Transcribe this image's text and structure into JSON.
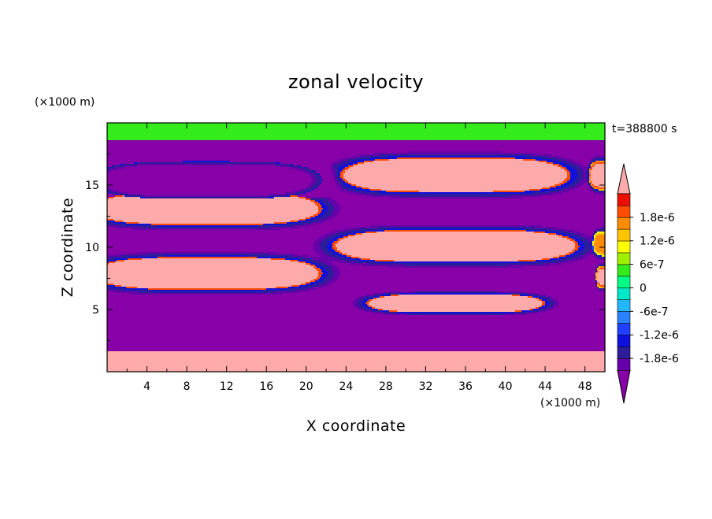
{
  "chart_data": {
    "type": "heatmap",
    "title": "zonal velocity",
    "xlabel": "X coordinate",
    "ylabel": "Z coordinate",
    "x_unit": "(×1000 m)",
    "z_unit": "(×1000 m)",
    "time_label": "t=388800 s",
    "xlim": [
      0,
      50
    ],
    "zlim": [
      0,
      20
    ],
    "x_ticks": [
      "4",
      "8",
      "12",
      "16",
      "20",
      "24",
      "28",
      "32",
      "36",
      "40",
      "44",
      "48"
    ],
    "x_tick_values": [
      4,
      8,
      12,
      16,
      20,
      24,
      28,
      32,
      36,
      40,
      44,
      48
    ],
    "z_ticks": [
      "5",
      "10",
      "15"
    ],
    "z_tick_values": [
      5,
      10,
      15
    ],
    "colorbar": {
      "labels": [
        "1.8e-6",
        "1.2e-6",
        "6e-7",
        "0",
        "-6e-7",
        "-1.2e-6",
        "-1.8e-6"
      ],
      "label_values": [
        1.8e-06,
        1.2e-06,
        6e-07,
        0,
        -6e-07,
        -1.2e-06,
        -1.8e-06
      ],
      "levels": [
        -2.1e-06,
        -1.8e-06,
        -1.5e-06,
        -1.2e-06,
        -9e-07,
        -6e-07,
        -3e-07,
        0,
        3e-07,
        6e-07,
        9e-07,
        1.2e-06,
        1.5e-06,
        1.8e-06,
        2.1e-06
      ],
      "colors": [
        "#6600aa",
        "#2d1d9b",
        "#1010dd",
        "#2040ff",
        "#2a82ff",
        "#22b7ff",
        "#00e8c8",
        "#00ff84",
        "#34ec1c",
        "#a0ee00",
        "#ffff00",
        "#ffc400",
        "#ff8c00",
        "#ff4c00",
        "#ec0e00"
      ],
      "over_color": "#ffaaaa",
      "under_color": "#8800a8"
    },
    "field": {
      "background_value": -2.4e-06,
      "top_value": 3e-07,
      "bands": [
        {
          "x": [
            0,
            50
          ],
          "z": [
            0,
            1.6
          ],
          "value": 2.4e-06
        },
        {
          "x": [
            0,
            50
          ],
          "z": [
            18.6,
            20
          ],
          "value": 4e-07
        }
      ],
      "cells": [
        {
          "cx": 10,
          "cz": 15.4,
          "rx": 11.6,
          "rz": 1.5,
          "amp": -2.6e-06,
          "halo": 2.7e-06
        },
        {
          "cx": 35,
          "cz": 15.8,
          "rx": 11.6,
          "rz": 1.4,
          "amp": 2.8e-06,
          "halo": 3e-06
        },
        {
          "cx": 10,
          "cz": 13.1,
          "rx": 11.6,
          "rz": 1.3,
          "amp": 2.9e-06,
          "halo": 2.8e-06
        },
        {
          "cx": 35,
          "cz": 10.1,
          "rx": 12.4,
          "rz": 1.3,
          "amp": 2.9e-06,
          "halo": 2.8e-06
        },
        {
          "cx": 10,
          "cz": 7.9,
          "rx": 11.6,
          "rz": 1.3,
          "amp": 2.9e-06,
          "halo": 2.8e-06
        },
        {
          "cx": 35,
          "cz": 5.5,
          "rx": 9.0,
          "rz": 0.75,
          "amp": 2.9e-06,
          "halo": 2.8e-06
        },
        {
          "cx": 50,
          "cz": 15.8,
          "rx": 1.6,
          "rz": 1.2,
          "amp": 2.4e-06,
          "halo": 2.4e-06
        },
        {
          "cx": 50,
          "cz": 10.3,
          "rx": 1.2,
          "rz": 1.0,
          "amp": 1.6e-06,
          "halo": 2.4e-06
        },
        {
          "cx": 50,
          "cz": 7.6,
          "rx": 0.9,
          "rz": 0.9,
          "amp": 2.2e-06,
          "halo": 2.4e-06
        }
      ]
    }
  }
}
